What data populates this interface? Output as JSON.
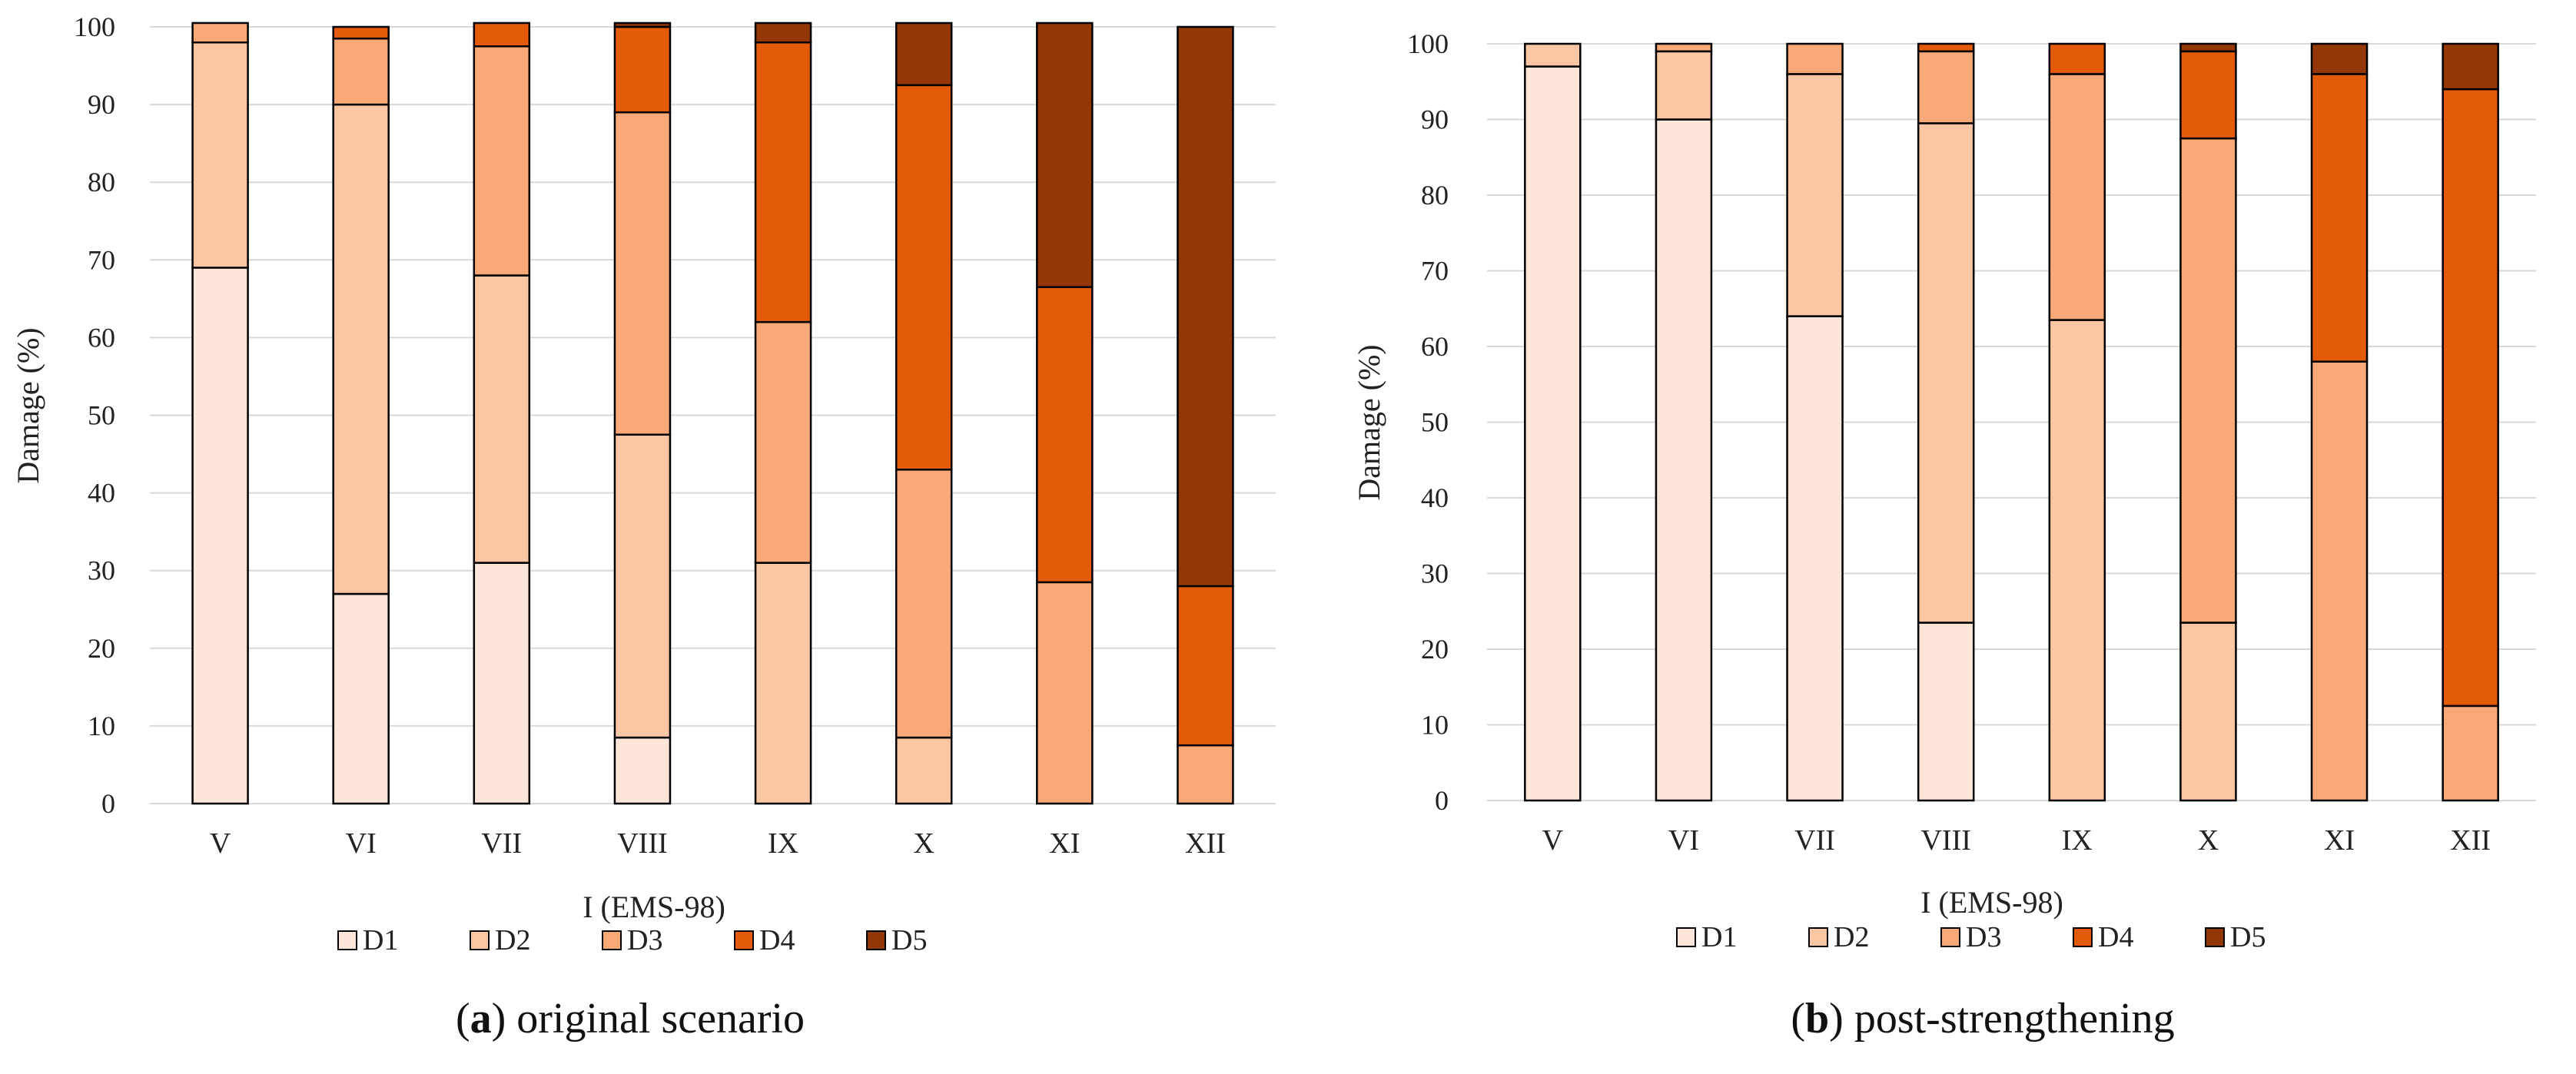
{
  "figure": {
    "damage_states": [
      {
        "key": "D1",
        "label": "D1",
        "color": "#FDE5D9"
      },
      {
        "key": "D2",
        "label": "D2",
        "color": "#FBC6A4"
      },
      {
        "key": "D3",
        "label": "D3",
        "color": "#F9A877"
      },
      {
        "key": "D4",
        "label": "D4",
        "color": "#E35B08"
      },
      {
        "key": "D5",
        "label": "D5",
        "color": "#943707"
      }
    ],
    "grid_color": "#D9D9D9",
    "bar_outline": "#000000"
  },
  "chart_data": [
    {
      "type": "bar",
      "stacked": true,
      "title": "",
      "caption_letter": "a",
      "caption_text": " original scenario",
      "xlabel": "I (EMS-98)",
      "ylabel": "Damage (%)",
      "ylim": [
        0,
        100
      ],
      "yticks": [
        "0",
        "10",
        "20",
        "30",
        "40",
        "50",
        "60",
        "70",
        "80",
        "90",
        "100"
      ],
      "grid": true,
      "legend_position": "bottom",
      "categories": [
        "V",
        "VI",
        "VII",
        "VIII",
        "IX",
        "X",
        "XI",
        "XII"
      ],
      "series": [
        {
          "name": "D1",
          "values": [
            69,
            27,
            31,
            8.5,
            0,
            0,
            0,
            0
          ]
        },
        {
          "name": "D2",
          "values": [
            29,
            63,
            37,
            39,
            31,
            8.5,
            0,
            0
          ]
        },
        {
          "name": "D3",
          "values": [
            2.5,
            8.5,
            29.5,
            41.5,
            31,
            34.5,
            28.5,
            7.5
          ]
        },
        {
          "name": "D4",
          "values": [
            0,
            1.5,
            3,
            11,
            36,
            49.5,
            38,
            20.5
          ]
        },
        {
          "name": "D5",
          "values": [
            0,
            0,
            0,
            0.5,
            2.5,
            8,
            34,
            72
          ]
        }
      ]
    },
    {
      "type": "bar",
      "stacked": true,
      "title": "",
      "caption_letter": "b",
      "caption_text": " post-strengthening",
      "xlabel": "I (EMS-98)",
      "ylabel": "Damage (%)",
      "ylim": [
        0,
        100
      ],
      "yticks": [
        "0",
        "10",
        "20",
        "30",
        "40",
        "50",
        "60",
        "70",
        "80",
        "90",
        "100"
      ],
      "grid": true,
      "legend_position": "bottom",
      "categories": [
        "V",
        "VI",
        "VII",
        "VIII",
        "IX",
        "X",
        "XI",
        "XII"
      ],
      "series": [
        {
          "name": "D1",
          "values": [
            97,
            90,
            64,
            23.5,
            0,
            0,
            0,
            0
          ]
        },
        {
          "name": "D2",
          "values": [
            3,
            9,
            32,
            66,
            63.5,
            23.5,
            0,
            0
          ]
        },
        {
          "name": "D3",
          "values": [
            0,
            1,
            4,
            9.5,
            32.5,
            64,
            58,
            12.5
          ]
        },
        {
          "name": "D4",
          "values": [
            0,
            0,
            0,
            1,
            4,
            11.5,
            38,
            81.5
          ]
        },
        {
          "name": "D5",
          "values": [
            0,
            0,
            0,
            0,
            0,
            1,
            4,
            6
          ]
        }
      ]
    }
  ]
}
